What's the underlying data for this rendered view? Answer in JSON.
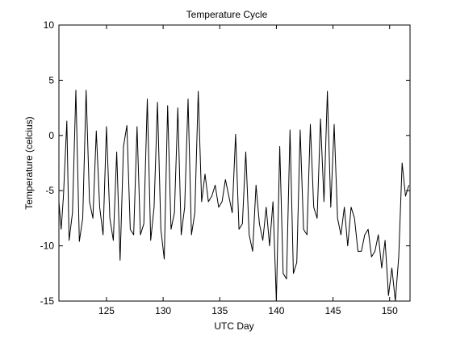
{
  "chart_data": {
    "type": "line",
    "title": "Temperature Cycle",
    "xlabel": "UTC Day",
    "ylabel": "Temperature (celcius)",
    "xlim": [
      120.8,
      151.8
    ],
    "ylim": [
      -15,
      10
    ],
    "xticks": [
      125,
      130,
      135,
      140,
      145,
      150
    ],
    "xtick_labels": [
      "125",
      "130",
      "135",
      "140",
      "145",
      "150"
    ],
    "yticks": [
      10,
      5,
      0,
      -5,
      -10,
      -15
    ],
    "ytick_labels": [
      "10",
      "5",
      "0",
      "-5",
      "-10",
      "-15"
    ],
    "grid": false,
    "series": [
      {
        "color": "#000000",
        "x": [
          120.8,
          121.0,
          121.2,
          121.5,
          121.7,
          122.0,
          122.3,
          122.6,
          122.9,
          123.2,
          123.5,
          123.8,
          124.1,
          124.4,
          124.7,
          125.0,
          125.3,
          125.6,
          125.9,
          126.2,
          126.5,
          126.8,
          127.1,
          127.4,
          127.7,
          128.0,
          128.3,
          128.6,
          128.9,
          129.2,
          129.5,
          129.8,
          130.1,
          130.4,
          130.7,
          131.0,
          131.3,
          131.6,
          131.9,
          132.2,
          132.5,
          132.8,
          133.1,
          133.4,
          133.7,
          134.0,
          134.3,
          134.6,
          134.9,
          135.2,
          135.5,
          135.8,
          136.1,
          136.4,
          136.7,
          137.0,
          137.3,
          137.6,
          137.9,
          138.2,
          138.5,
          138.8,
          139.1,
          139.4,
          139.7,
          140.0,
          140.3,
          140.6,
          140.9,
          141.2,
          141.5,
          141.8,
          142.1,
          142.4,
          142.7,
          143.0,
          143.3,
          143.6,
          143.9,
          144.2,
          144.5,
          144.8,
          145.1,
          145.4,
          145.7,
          146.0,
          146.3,
          146.6,
          146.9,
          147.2,
          147.5,
          147.8,
          148.1,
          148.4,
          148.7,
          149.0,
          149.3,
          149.6,
          149.9,
          150.2,
          150.5,
          150.8,
          151.1,
          151.4,
          151.7
        ],
        "y": [
          -6.0,
          -8.5,
          -5.5,
          1.3,
          -9.5,
          -7.0,
          4.1,
          -9.6,
          -7.5,
          4.1,
          -6.0,
          -7.5,
          0.4,
          -6.5,
          -9.0,
          0.8,
          -7.5,
          -9.5,
          -1.5,
          -11.3,
          -1.0,
          0.9,
          -8.5,
          -9.0,
          0.8,
          -9.0,
          -8.0,
          3.3,
          -9.5,
          -6.5,
          3.0,
          -8.5,
          -11.2,
          2.7,
          -8.5,
          -7.0,
          2.5,
          -9.0,
          -6.5,
          3.3,
          -9.0,
          -7.0,
          4.0,
          -6.0,
          -3.5,
          -6.0,
          -5.5,
          -4.5,
          -6.5,
          -6.0,
          -4.0,
          -5.5,
          -7.0,
          0.1,
          -8.5,
          -8.0,
          -1.5,
          -9.0,
          -10.5,
          -4.5,
          -8.0,
          -9.5,
          -6.5,
          -10.0,
          -6.0,
          -15.0,
          -1.0,
          -12.5,
          -13.0,
          0.5,
          -12.5,
          -11.5,
          0.5,
          -8.5,
          -9.0,
          1.0,
          -6.5,
          -7.5,
          1.5,
          -6.0,
          4.0,
          -6.5,
          1.0,
          -7.5,
          -9.0,
          -6.5,
          -10.0,
          -6.5,
          -7.5,
          -10.5,
          -10.5,
          -9.0,
          -8.5,
          -11.0,
          -10.5,
          -9.0,
          -12.0,
          -9.5,
          -14.5,
          -12.0,
          -15.0,
          -11.0,
          -2.5,
          -5.5,
          -4.5
        ]
      }
    ]
  }
}
